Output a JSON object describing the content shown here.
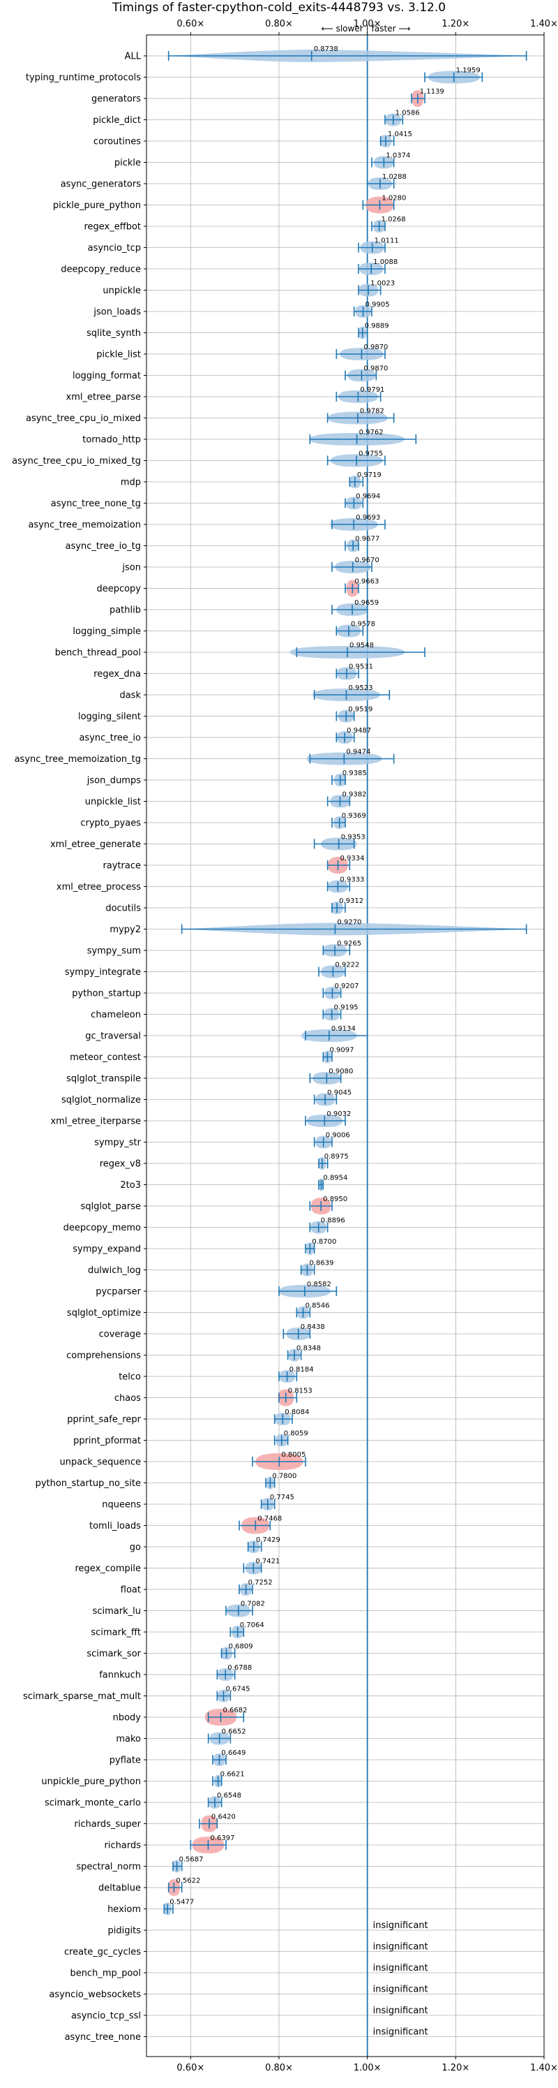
{
  "chart_data": {
    "type": "violin",
    "title": "Timings of faster-cpython-cold_exits-4448793 vs. 3.12.0",
    "direction_left": "⟵ slower",
    "direction_sep": "|",
    "direction_right": "faster ⟶",
    "xlim": [
      0.5,
      1.4
    ],
    "xticks": [
      0.6,
      0.8,
      1.0,
      1.2,
      1.4
    ],
    "xtick_labels": [
      "0.60×",
      "0.80×",
      "1.00×",
      "1.20×",
      "1.40×"
    ],
    "reference_line": 1.0,
    "grid": true,
    "insignificant_label": "insignificant",
    "colors": {
      "violin": "#a9c8e4",
      "violin_highlight": "#f4a4a6",
      "line": "#1f77b4",
      "grid": "#b0b0b0"
    },
    "benchmarks": [
      {
        "name": "ALL",
        "mean": 0.8738,
        "min": 0.55,
        "max": 1.36,
        "wide": true,
        "spread": 0.1
      },
      {
        "name": "typing_runtime_protocols",
        "mean": 1.1959,
        "min": 1.13,
        "max": 1.26
      },
      {
        "name": "generators",
        "mean": 1.1139,
        "min": 1.1,
        "max": 1.13,
        "highlight": true
      },
      {
        "name": "pickle_dict",
        "mean": 1.0586,
        "min": 1.04,
        "max": 1.08
      },
      {
        "name": "coroutines",
        "mean": 1.0415,
        "min": 1.03,
        "max": 1.06
      },
      {
        "name": "pickle",
        "mean": 1.0374,
        "min": 1.01,
        "max": 1.06
      },
      {
        "name": "async_generators",
        "mean": 1.0288,
        "min": 1.0,
        "max": 1.06
      },
      {
        "name": "pickle_pure_python",
        "mean": 1.028,
        "min": 0.99,
        "max": 1.06,
        "highlight": true
      },
      {
        "name": "regex_effbot",
        "mean": 1.0268,
        "min": 1.01,
        "max": 1.04
      },
      {
        "name": "asyncio_tcp",
        "mean": 1.0111,
        "min": 0.98,
        "max": 1.04
      },
      {
        "name": "deepcopy_reduce",
        "mean": 1.0088,
        "min": 0.98,
        "max": 1.04
      },
      {
        "name": "unpickle",
        "mean": 1.0023,
        "min": 0.98,
        "max": 1.03
      },
      {
        "name": "json_loads",
        "mean": 0.9905,
        "min": 0.97,
        "max": 1.01
      },
      {
        "name": "sqlite_synth",
        "mean": 0.9889,
        "min": 0.98,
        "max": 1.0
      },
      {
        "name": "pickle_list",
        "mean": 0.987,
        "min": 0.93,
        "max": 1.04
      },
      {
        "name": "logging_format",
        "mean": 0.987,
        "min": 0.95,
        "max": 1.02
      },
      {
        "name": "xml_etree_parse",
        "mean": 0.9791,
        "min": 0.93,
        "max": 1.03
      },
      {
        "name": "async_tree_cpu_io_mixed",
        "mean": 0.9782,
        "min": 0.91,
        "max": 1.06
      },
      {
        "name": "tornado_http",
        "mean": 0.9762,
        "min": 0.87,
        "max": 1.11
      },
      {
        "name": "async_tree_cpu_io_mixed_tg",
        "mean": 0.9755,
        "min": 0.91,
        "max": 1.04
      },
      {
        "name": "mdp",
        "mean": 0.9719,
        "min": 0.96,
        "max": 0.99
      },
      {
        "name": "async_tree_none_tg",
        "mean": 0.9694,
        "min": 0.95,
        "max": 0.99
      },
      {
        "name": "async_tree_memoization",
        "mean": 0.9693,
        "min": 0.92,
        "max": 1.04
      },
      {
        "name": "async_tree_io_tg",
        "mean": 0.9677,
        "min": 0.95,
        "max": 0.98
      },
      {
        "name": "json",
        "mean": 0.967,
        "min": 0.92,
        "max": 1.01
      },
      {
        "name": "deepcopy",
        "mean": 0.9663,
        "min": 0.95,
        "max": 0.98,
        "highlight": true
      },
      {
        "name": "pathlib",
        "mean": 0.9659,
        "min": 0.92,
        "max": 1.0
      },
      {
        "name": "logging_simple",
        "mean": 0.9578,
        "min": 0.93,
        "max": 0.99
      },
      {
        "name": "bench_thread_pool",
        "mean": 0.9548,
        "min": 0.84,
        "max": 1.13
      },
      {
        "name": "regex_dna",
        "mean": 0.9531,
        "min": 0.93,
        "max": 0.98
      },
      {
        "name": "dask",
        "mean": 0.9523,
        "min": 0.88,
        "max": 1.05
      },
      {
        "name": "logging_silent",
        "mean": 0.9519,
        "min": 0.93,
        "max": 0.97
      },
      {
        "name": "async_tree_io",
        "mean": 0.9487,
        "min": 0.93,
        "max": 0.97
      },
      {
        "name": "async_tree_memoization_tg",
        "mean": 0.9474,
        "min": 0.87,
        "max": 1.06
      },
      {
        "name": "json_dumps",
        "mean": 0.9385,
        "min": 0.92,
        "max": 0.95
      },
      {
        "name": "unpickle_list",
        "mean": 0.9382,
        "min": 0.91,
        "max": 0.96
      },
      {
        "name": "crypto_pyaes",
        "mean": 0.9369,
        "min": 0.92,
        "max": 0.95
      },
      {
        "name": "xml_etree_generate",
        "mean": 0.9353,
        "min": 0.88,
        "max": 0.97
      },
      {
        "name": "raytrace",
        "mean": 0.9334,
        "min": 0.91,
        "max": 0.96,
        "highlight": true
      },
      {
        "name": "xml_etree_process",
        "mean": 0.9333,
        "min": 0.91,
        "max": 0.96
      },
      {
        "name": "docutils",
        "mean": 0.9312,
        "min": 0.92,
        "max": 0.95
      },
      {
        "name": "mypy2",
        "mean": 0.927,
        "min": 0.58,
        "max": 1.36,
        "wide": true,
        "spread": 0.2
      },
      {
        "name": "sympy_sum",
        "mean": 0.9265,
        "min": 0.9,
        "max": 0.96
      },
      {
        "name": "sympy_integrate",
        "mean": 0.9222,
        "min": 0.89,
        "max": 0.95
      },
      {
        "name": "python_startup",
        "mean": 0.9207,
        "min": 0.9,
        "max": 0.94
      },
      {
        "name": "chameleon",
        "mean": 0.9195,
        "min": 0.9,
        "max": 0.94
      },
      {
        "name": "gc_traversal",
        "mean": 0.9134,
        "min": 0.86,
        "max": 1.0
      },
      {
        "name": "meteor_contest",
        "mean": 0.9097,
        "min": 0.9,
        "max": 0.92
      },
      {
        "name": "sqlglot_transpile",
        "mean": 0.908,
        "min": 0.87,
        "max": 0.94
      },
      {
        "name": "sqlglot_normalize",
        "mean": 0.9045,
        "min": 0.88,
        "max": 0.93
      },
      {
        "name": "xml_etree_iterparse",
        "mean": 0.9032,
        "min": 0.86,
        "max": 0.95
      },
      {
        "name": "sympy_str",
        "mean": 0.9006,
        "min": 0.88,
        "max": 0.92
      },
      {
        "name": "regex_v8",
        "mean": 0.8975,
        "min": 0.89,
        "max": 0.91
      },
      {
        "name": "2to3",
        "mean": 0.8954,
        "min": 0.89,
        "max": 0.9
      },
      {
        "name": "sqlglot_parse",
        "mean": 0.895,
        "min": 0.87,
        "max": 0.92,
        "highlight": true
      },
      {
        "name": "deepcopy_memo",
        "mean": 0.8896,
        "min": 0.87,
        "max": 0.91
      },
      {
        "name": "sympy_expand",
        "mean": 0.87,
        "min": 0.86,
        "max": 0.88
      },
      {
        "name": "dulwich_log",
        "mean": 0.8639,
        "min": 0.85,
        "max": 0.88
      },
      {
        "name": "pycparser",
        "mean": 0.8582,
        "min": 0.8,
        "max": 0.93
      },
      {
        "name": "sqlglot_optimize",
        "mean": 0.8546,
        "min": 0.84,
        "max": 0.87
      },
      {
        "name": "coverage",
        "mean": 0.8438,
        "min": 0.81,
        "max": 0.87
      },
      {
        "name": "comprehensions",
        "mean": 0.8348,
        "min": 0.82,
        "max": 0.85
      },
      {
        "name": "telco",
        "mean": 0.8184,
        "min": 0.8,
        "max": 0.84
      },
      {
        "name": "chaos",
        "mean": 0.8153,
        "min": 0.8,
        "max": 0.84,
        "highlight": true
      },
      {
        "name": "pprint_safe_repr",
        "mean": 0.8084,
        "min": 0.79,
        "max": 0.83
      },
      {
        "name": "pprint_pformat",
        "mean": 0.8059,
        "min": 0.79,
        "max": 0.82
      },
      {
        "name": "unpack_sequence",
        "mean": 0.8005,
        "min": 0.74,
        "max": 0.86,
        "highlight": true
      },
      {
        "name": "python_startup_no_site",
        "mean": 0.78,
        "min": 0.77,
        "max": 0.79
      },
      {
        "name": "nqueens",
        "mean": 0.7745,
        "min": 0.76,
        "max": 0.79
      },
      {
        "name": "tomli_loads",
        "mean": 0.7468,
        "min": 0.71,
        "max": 0.78,
        "highlight": true
      },
      {
        "name": "go",
        "mean": 0.7429,
        "min": 0.73,
        "max": 0.76
      },
      {
        "name": "regex_compile",
        "mean": 0.7421,
        "min": 0.72,
        "max": 0.76
      },
      {
        "name": "float",
        "mean": 0.7252,
        "min": 0.71,
        "max": 0.74
      },
      {
        "name": "scimark_lu",
        "mean": 0.7082,
        "min": 0.68,
        "max": 0.74
      },
      {
        "name": "scimark_fft",
        "mean": 0.7064,
        "min": 0.69,
        "max": 0.72
      },
      {
        "name": "scimark_sor",
        "mean": 0.6809,
        "min": 0.67,
        "max": 0.7
      },
      {
        "name": "fannkuch",
        "mean": 0.6788,
        "min": 0.66,
        "max": 0.7
      },
      {
        "name": "scimark_sparse_mat_mult",
        "mean": 0.6745,
        "min": 0.66,
        "max": 0.69
      },
      {
        "name": "nbody",
        "mean": 0.6682,
        "min": 0.64,
        "max": 0.72,
        "highlight": true
      },
      {
        "name": "mako",
        "mean": 0.6652,
        "min": 0.64,
        "max": 0.69
      },
      {
        "name": "pyflate",
        "mean": 0.6649,
        "min": 0.65,
        "max": 0.68
      },
      {
        "name": "unpickle_pure_python",
        "mean": 0.6621,
        "min": 0.65,
        "max": 0.67
      },
      {
        "name": "scimark_monte_carlo",
        "mean": 0.6548,
        "min": 0.64,
        "max": 0.67
      },
      {
        "name": "richards_super",
        "mean": 0.642,
        "min": 0.62,
        "max": 0.66,
        "highlight": true
      },
      {
        "name": "richards",
        "mean": 0.6397,
        "min": 0.6,
        "max": 0.68,
        "highlight": true
      },
      {
        "name": "spectral_norm",
        "mean": 0.5687,
        "min": 0.56,
        "max": 0.58
      },
      {
        "name": "deltablue",
        "mean": 0.5622,
        "min": 0.55,
        "max": 0.58,
        "highlight": true
      },
      {
        "name": "hexiom",
        "mean": 0.5477,
        "min": 0.54,
        "max": 0.56
      },
      {
        "name": "pidigits",
        "insignificant": true
      },
      {
        "name": "create_gc_cycles",
        "insignificant": true
      },
      {
        "name": "bench_mp_pool",
        "insignificant": true
      },
      {
        "name": "asyncio_websockets",
        "insignificant": true
      },
      {
        "name": "asyncio_tcp_ssl",
        "insignificant": true
      },
      {
        "name": "async_tree_none",
        "insignificant": true
      }
    ]
  }
}
